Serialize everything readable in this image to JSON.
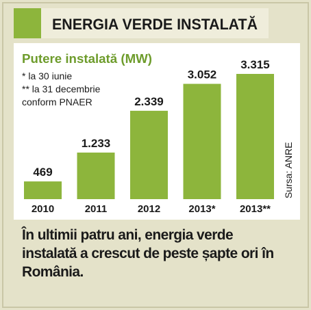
{
  "chart_data": {
    "type": "bar",
    "title": "ENERGIA VERDE INSTALATĂ",
    "subtitle": "Putere instalată (MW)",
    "notes": [
      "* la 30 iunie",
      "** la 31 decembrie",
      "conform PNAER"
    ],
    "source": "Sursa: ANRE",
    "categories": [
      "2010",
      "2011",
      "2012",
      "2013*",
      "2013**"
    ],
    "values": [
      469,
      1233,
      2339,
      3052,
      3315
    ],
    "value_labels": [
      "469",
      "1.233",
      "2.339",
      "3.052",
      "3.315"
    ],
    "color": "#8db53c",
    "caption": "În ultimii patru ani, energia verde instalată a crescut de peste șapte ori în România."
  }
}
